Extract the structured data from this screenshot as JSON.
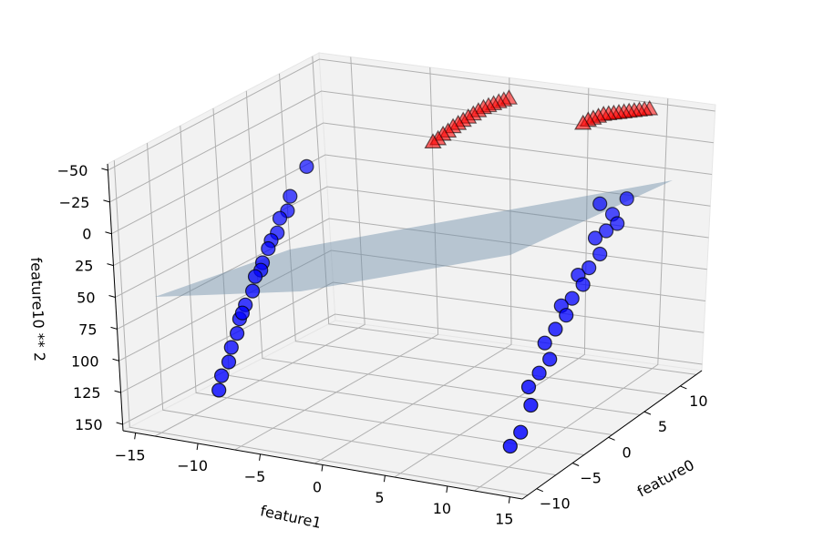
{
  "chart_data": {
    "type": "scatter",
    "projection": "3d",
    "grid": true,
    "title": "",
    "xlabel": "feature0",
    "ylabel": "feature1",
    "zlabel": "feature10 ** 2",
    "xlim": [
      -12,
      13
    ],
    "ylim": [
      -16,
      16
    ],
    "zlim": [
      -55,
      155
    ],
    "z_axis_inverted": true,
    "x_ticks": [
      "−10",
      "−5",
      "0",
      "5",
      "10"
    ],
    "y_ticks": [
      "−15",
      "−10",
      "−5",
      "0",
      "5",
      "10",
      "15"
    ],
    "z_ticks": [
      "−50",
      "−25",
      "0",
      "25",
      "50",
      "75",
      "100",
      "125",
      "150"
    ],
    "plane": {
      "color": "#6f8fa8",
      "opacity": 0.45
    },
    "series": [
      {
        "marker": "circle",
        "color": "#0000ff",
        "edgecolor": "#000000",
        "points": [
          [
            -10.5,
            -5.0,
            150
          ],
          [
            -10.5,
            -4.5,
            140
          ],
          [
            -10.2,
            -4.0,
            130
          ],
          [
            -10.2,
            -3.5,
            120
          ],
          [
            -10.0,
            -3.0,
            110
          ],
          [
            -10.0,
            -2.5,
            100
          ],
          [
            -9.8,
            -2.5,
            95
          ],
          [
            -9.8,
            -2.0,
            90
          ],
          [
            -9.5,
            -1.5,
            80
          ],
          [
            -9.5,
            -1.0,
            70
          ],
          [
            -9.2,
            -0.8,
            65
          ],
          [
            -9.2,
            -0.5,
            60
          ],
          [
            -9.0,
            0.0,
            50
          ],
          [
            -9.0,
            0.5,
            45
          ],
          [
            -8.8,
            1.0,
            40
          ],
          [
            -8.8,
            1.5,
            30
          ],
          [
            -8.5,
            2.0,
            25
          ],
          [
            -8.5,
            2.5,
            15
          ],
          [
            -8.0,
            4.0,
            -5
          ],
          [
            9.0,
            -7.0,
            150
          ],
          [
            9.5,
            -6.5,
            140
          ],
          [
            10.0,
            -6.0,
            120
          ],
          [
            9.5,
            -5.0,
            110
          ],
          [
            10.0,
            -4.5,
            100
          ],
          [
            10.5,
            -4.0,
            90
          ],
          [
            10.0,
            -3.5,
            80
          ],
          [
            10.5,
            -3.0,
            70
          ],
          [
            11.0,
            -2.5,
            60
          ],
          [
            10.5,
            -2.0,
            55
          ],
          [
            11.0,
            -1.5,
            50
          ],
          [
            11.5,
            -1.0,
            40
          ],
          [
            11.0,
            -0.5,
            35
          ],
          [
            11.5,
            0.0,
            30
          ],
          [
            12.0,
            0.5,
            20
          ],
          [
            11.5,
            1.0,
            10
          ],
          [
            12.0,
            1.5,
            5
          ],
          [
            12.5,
            2.0,
            0
          ],
          [
            12.0,
            2.5,
            -5
          ],
          [
            11.0,
            3.0,
            -10
          ],
          [
            12.5,
            3.5,
            -15
          ]
        ]
      },
      {
        "marker": "triangle",
        "color": "#ff0000",
        "edgecolor": "#000000",
        "points": [
          [
            -2.0,
            9.0,
            -20
          ],
          [
            -1.8,
            9.3,
            -22
          ],
          [
            -1.6,
            9.6,
            -25
          ],
          [
            -1.4,
            9.9,
            -27
          ],
          [
            -1.2,
            10.2,
            -30
          ],
          [
            -1.0,
            10.5,
            -32
          ],
          [
            -0.8,
            10.8,
            -34
          ],
          [
            -0.6,
            11.1,
            -36
          ],
          [
            -0.4,
            11.4,
            -38
          ],
          [
            -0.2,
            11.7,
            -40
          ],
          [
            0.0,
            12.0,
            -42
          ],
          [
            0.2,
            12.3,
            -43
          ],
          [
            0.4,
            12.6,
            -44
          ],
          [
            0.6,
            12.9,
            -45
          ],
          [
            0.8,
            13.2,
            -46
          ],
          [
            1.0,
            13.5,
            -47
          ],
          [
            7.5,
            9.0,
            -50
          ],
          [
            7.7,
            9.3,
            -52
          ],
          [
            7.9,
            9.6,
            -53
          ],
          [
            8.1,
            9.9,
            -54
          ],
          [
            8.3,
            10.2,
            -55
          ],
          [
            8.5,
            10.5,
            -55
          ],
          [
            8.7,
            10.8,
            -55
          ],
          [
            8.9,
            11.1,
            -55
          ],
          [
            9.1,
            11.4,
            -55
          ],
          [
            9.3,
            11.7,
            -55
          ],
          [
            9.5,
            12.0,
            -55
          ],
          [
            9.7,
            12.3,
            -55
          ],
          [
            9.9,
            12.6,
            -55
          ],
          [
            10.1,
            12.9,
            -55
          ]
        ]
      }
    ]
  }
}
